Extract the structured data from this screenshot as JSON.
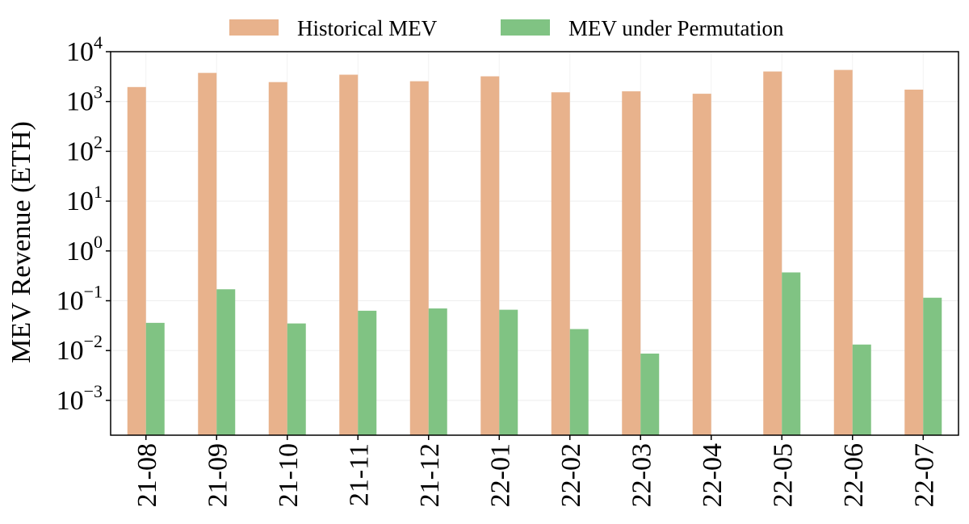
{
  "chart_data": {
    "type": "bar",
    "title": "",
    "xlabel": "",
    "ylabel": "MEV Revenue (ETH)",
    "yscale": "log",
    "ylim": [
      0.0002,
      10000
    ],
    "y_ticks": [
      {
        "base": "10",
        "exp": "4",
        "value": 10000
      },
      {
        "base": "10",
        "exp": "3",
        "value": 1000
      },
      {
        "base": "10",
        "exp": "2",
        "value": 100
      },
      {
        "base": "10",
        "exp": "1",
        "value": 10
      },
      {
        "base": "10",
        "exp": "0",
        "value": 1
      },
      {
        "base": "10",
        "exp": "−1",
        "value": 0.1
      },
      {
        "base": "10",
        "exp": "−2",
        "value": 0.01
      },
      {
        "base": "10",
        "exp": "−3",
        "value": 0.001
      }
    ],
    "grid": true,
    "legend_position": "top-center",
    "categories": [
      "21-08",
      "21-09",
      "21-10",
      "21-11",
      "21-12",
      "22-01",
      "22-02",
      "22-03",
      "22-04",
      "22-05",
      "22-06",
      "22-07"
    ],
    "series": [
      {
        "name": "Historical MEV",
        "color": "#e8b28c",
        "values": [
          1950,
          3750,
          2450,
          3450,
          2550,
          3200,
          1530,
          1600,
          1430,
          4000,
          4300,
          1730
        ]
      },
      {
        "name": "MEV under Permutation",
        "color": "#80c383",
        "values": [
          0.036,
          0.17,
          0.035,
          0.063,
          0.07,
          0.066,
          0.027,
          0.0087,
          null,
          0.37,
          0.0132,
          0.115
        ]
      }
    ]
  }
}
